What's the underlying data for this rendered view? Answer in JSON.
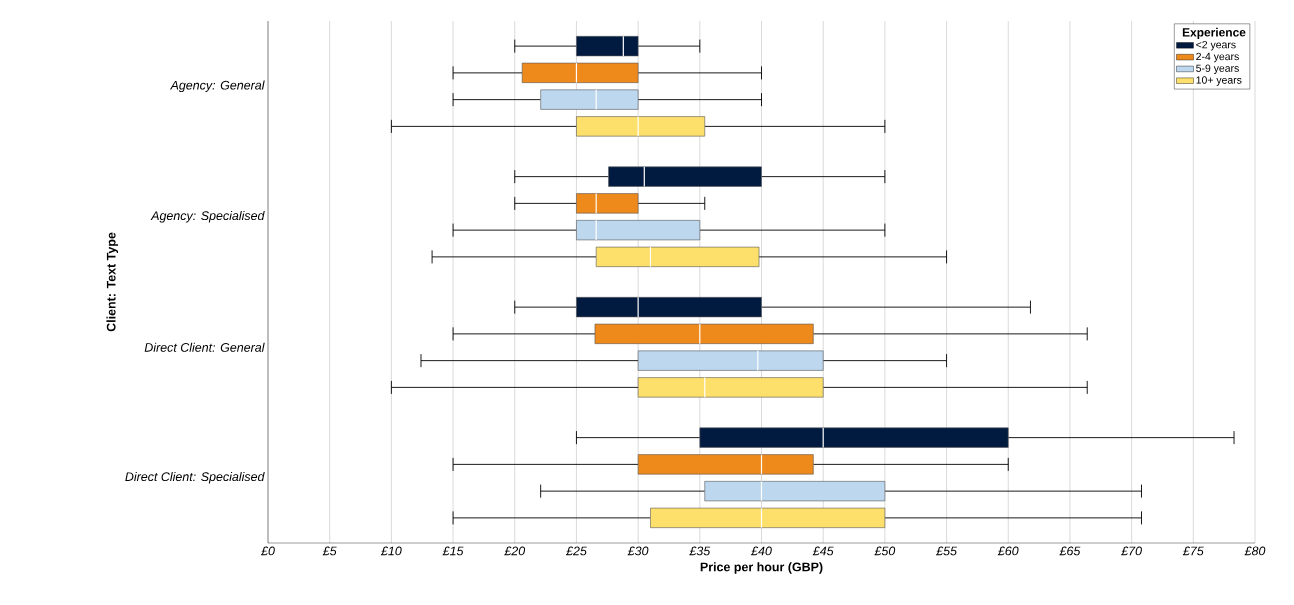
{
  "chart_data": {
    "type": "box",
    "orientation": "horizontal",
    "categories": [
      "Agency: General",
      "Agency: Specialised",
      "Direct Client: General",
      "Direct Client: Specialised"
    ],
    "series": [
      {
        "name": "<2 years",
        "color": "#001a40",
        "boxes": [
          {
            "low": 20,
            "q1": 25,
            "median": 28.8,
            "q3": 30,
            "high": 35
          },
          {
            "low": 20,
            "q1": 27.6,
            "median": 30.5,
            "q3": 40,
            "high": 50
          },
          {
            "low": 20,
            "q1": 25,
            "median": 30,
            "q3": 40,
            "high": 61.8
          },
          {
            "low": 25,
            "q1": 35,
            "median": 45,
            "q3": 60,
            "high": 78.3
          }
        ]
      },
      {
        "name": "2-4 years",
        "color": "#ee8a1c",
        "boxes": [
          {
            "low": 15,
            "q1": 20.6,
            "median": 25,
            "q3": 30,
            "high": 40
          },
          {
            "low": 20,
            "q1": 25,
            "median": 26.6,
            "q3": 30,
            "high": 35.4
          },
          {
            "low": 15,
            "q1": 26.5,
            "median": 35,
            "q3": 44.2,
            "high": 66.4
          },
          {
            "low": 15,
            "q1": 30,
            "median": 40,
            "q3": 44.2,
            "high": 60
          }
        ]
      },
      {
        "name": "5-9  years",
        "color": "#bdd7ee",
        "boxes": [
          {
            "low": 15,
            "q1": 22.1,
            "median": 26.6,
            "q3": 30,
            "high": 40
          },
          {
            "low": 15,
            "q1": 25,
            "median": 26.6,
            "q3": 35,
            "high": 50
          },
          {
            "low": 12.4,
            "q1": 30,
            "median": 39.7,
            "q3": 45,
            "high": 55
          },
          {
            "low": 22.1,
            "q1": 35.4,
            "median": 40,
            "q3": 50,
            "high": 70.8
          }
        ]
      },
      {
        "name": "10+ years",
        "color": "#fddf6b",
        "boxes": [
          {
            "low": 10,
            "q1": 25,
            "median": 30,
            "q3": 35.4,
            "high": 50
          },
          {
            "low": 13.3,
            "q1": 26.6,
            "median": 31,
            "q3": 39.8,
            "high": 55
          },
          {
            "low": 10,
            "q1": 30,
            "median": 35.4,
            "q3": 45,
            "high": 66.4
          },
          {
            "low": 15,
            "q1": 31,
            "median": 40,
            "q3": 50,
            "high": 70.8
          }
        ]
      }
    ],
    "xlim": [
      0,
      80
    ],
    "xticks": [
      {
        "value": 0,
        "label": "£0"
      },
      {
        "value": 5,
        "label": "£5"
      },
      {
        "value": 10,
        "label": "£10"
      },
      {
        "value": 15,
        "label": "£15"
      },
      {
        "value": 20,
        "label": "£20"
      },
      {
        "value": 25,
        "label": "£25"
      },
      {
        "value": 30,
        "label": "£30"
      },
      {
        "value": 35,
        "label": "£35"
      },
      {
        "value": 40,
        "label": "£40"
      },
      {
        "value": 45,
        "label": "£45"
      },
      {
        "value": 50,
        "label": "£50"
      },
      {
        "value": 55,
        "label": "£55"
      },
      {
        "value": 60,
        "label": "£60"
      },
      {
        "value": 65,
        "label": "£65"
      },
      {
        "value": 70,
        "label": "£70"
      },
      {
        "value": 75,
        "label": "£75"
      },
      {
        "value": 80,
        "label": "£80"
      }
    ],
    "xlabel": "Price per hour (GBP)",
    "ylabel": "Client: Text Type",
    "legend_title": "Experience",
    "legend": "top right",
    "grid": "x"
  }
}
